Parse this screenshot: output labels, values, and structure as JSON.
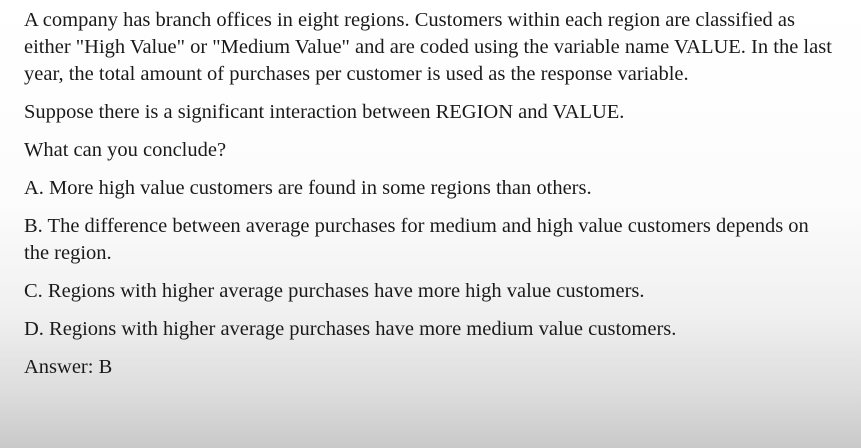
{
  "question": {
    "intro": "A company has branch offices in eight regions. Customers within each region are classified as either \"High Value\" or \"Medium Value\" and are coded using the variable name VALUE. In the last year, the total amount of purchases per customer is used as the response variable.",
    "premise": "Suppose there is a significant interaction between REGION and VALUE.",
    "prompt": "What can you conclude?"
  },
  "options": [
    {
      "text": "A. More high value customers are found in some regions than others."
    },
    {
      "text": "B. The difference between average purchases for medium and high value customers depends on the region."
    },
    {
      "text": "C. Regions with higher average purchases have more high value customers."
    },
    {
      "text": "D. Regions with higher average purchases have more medium value customers."
    }
  ],
  "answer": "Answer: B"
}
